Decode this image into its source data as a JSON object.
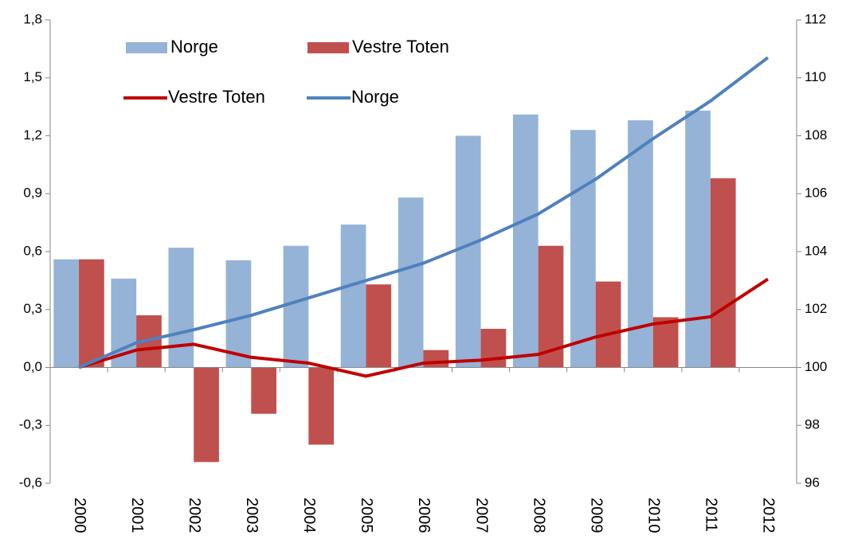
{
  "chart_data": {
    "type": "bar-line",
    "categories": [
      "2000",
      "2001",
      "2002",
      "2003",
      "2004",
      "2005",
      "2006",
      "2007",
      "2008",
      "2009",
      "2010",
      "2011",
      "2012"
    ],
    "series": [
      {
        "name": "Norge",
        "kind": "bar",
        "color": "#95b3d7",
        "values": [
          0.56,
          0.46,
          0.62,
          0.555,
          0.63,
          0.74,
          0.88,
          1.2,
          1.31,
          1.23,
          1.28,
          1.33,
          null
        ]
      },
      {
        "name": "Vestre Toten",
        "kind": "bar",
        "color": "#c0504d",
        "values": [
          0.56,
          0.27,
          -0.49,
          -0.24,
          -0.4,
          0.43,
          0.09,
          0.2,
          0.63,
          0.445,
          0.26,
          0.98,
          null
        ]
      },
      {
        "name": "Vestre Toten",
        "kind": "line",
        "axis": "y2",
        "color": "#c00000",
        "values": [
          100,
          100.6,
          100.8,
          100.35,
          100.15,
          99.7,
          100.15,
          100.25,
          100.45,
          101.05,
          101.5,
          101.75,
          103.05
        ]
      },
      {
        "name": "Norge",
        "kind": "line",
        "axis": "y2",
        "color": "#4f81bd",
        "values": [
          100,
          100.85,
          101.3,
          101.8,
          102.4,
          103.0,
          103.6,
          104.4,
          105.3,
          106.5,
          107.9,
          109.2,
          110.7
        ]
      }
    ],
    "ylim": [
      -0.6,
      1.8
    ],
    "yticks": [
      {
        "value": -0.6,
        "label": "-0,6"
      },
      {
        "value": -0.3,
        "label": "-0,3"
      },
      {
        "value": 0,
        "label": "0,0"
      },
      {
        "value": 0.3,
        "label": "0,3"
      },
      {
        "value": 0.6,
        "label": "0,6"
      },
      {
        "value": 0.9,
        "label": "0,9"
      },
      {
        "value": 1.2,
        "label": "1,2"
      },
      {
        "value": 1.5,
        "label": "1,5"
      },
      {
        "value": 1.8,
        "label": "1,8"
      }
    ],
    "y2lim": [
      96,
      112
    ],
    "y2ticks": [
      96,
      98,
      100,
      102,
      104,
      106,
      108,
      110,
      112
    ],
    "legend": "upper left"
  }
}
